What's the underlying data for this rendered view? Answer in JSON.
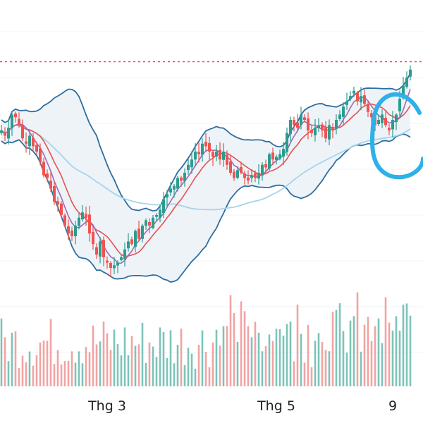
{
  "chart_data": {
    "type": "candlestick",
    "x_ticks": [
      {
        "label": "Thg 3",
        "index": 30
      },
      {
        "label": "Thg 5",
        "index": 78
      },
      {
        "label": "9",
        "index": 111
      }
    ],
    "reference_price": 138,
    "y_range": [
      36,
      156
    ],
    "colors": {
      "up": "#2a9d8f",
      "down": "#ef5350",
      "up_volume": "#7cc4b8",
      "down_volume": "#f2a3a3",
      "bollinger": "#2c6ea0",
      "band_fill": "#eef3f8",
      "ma_fast": "#9c6ab0",
      "ma_mid": "#e85050",
      "ma_slow": "#a6d4ec",
      "reference_line": "#e04a5a",
      "highlight": "#2eb0e8"
    },
    "closes": [
      112,
      110,
      113,
      118,
      117,
      114,
      109,
      107,
      110,
      106,
      104,
      100,
      95,
      94,
      90,
      85,
      84,
      80,
      76,
      73,
      72,
      76,
      79,
      81,
      79,
      73,
      69,
      65,
      70,
      64,
      62,
      60,
      61,
      62,
      64,
      67,
      70,
      69,
      74,
      71,
      76,
      78,
      76,
      79,
      80,
      82,
      86,
      88,
      90,
      91,
      94,
      93,
      96,
      99,
      101,
      104,
      103,
      107,
      106,
      104,
      102,
      104,
      101,
      104,
      99,
      96,
      94,
      97,
      96,
      94,
      93,
      95,
      94,
      96,
      99,
      98,
      103,
      101,
      102,
      103,
      105,
      111,
      116,
      114,
      113,
      118,
      116,
      112,
      111,
      113,
      114,
      112,
      109,
      114,
      112,
      116,
      118,
      121,
      123,
      125,
      127,
      123,
      125,
      122,
      119,
      117,
      114,
      116,
      118,
      114,
      112,
      116,
      118,
      124,
      129,
      132,
      135
    ]
  }
}
